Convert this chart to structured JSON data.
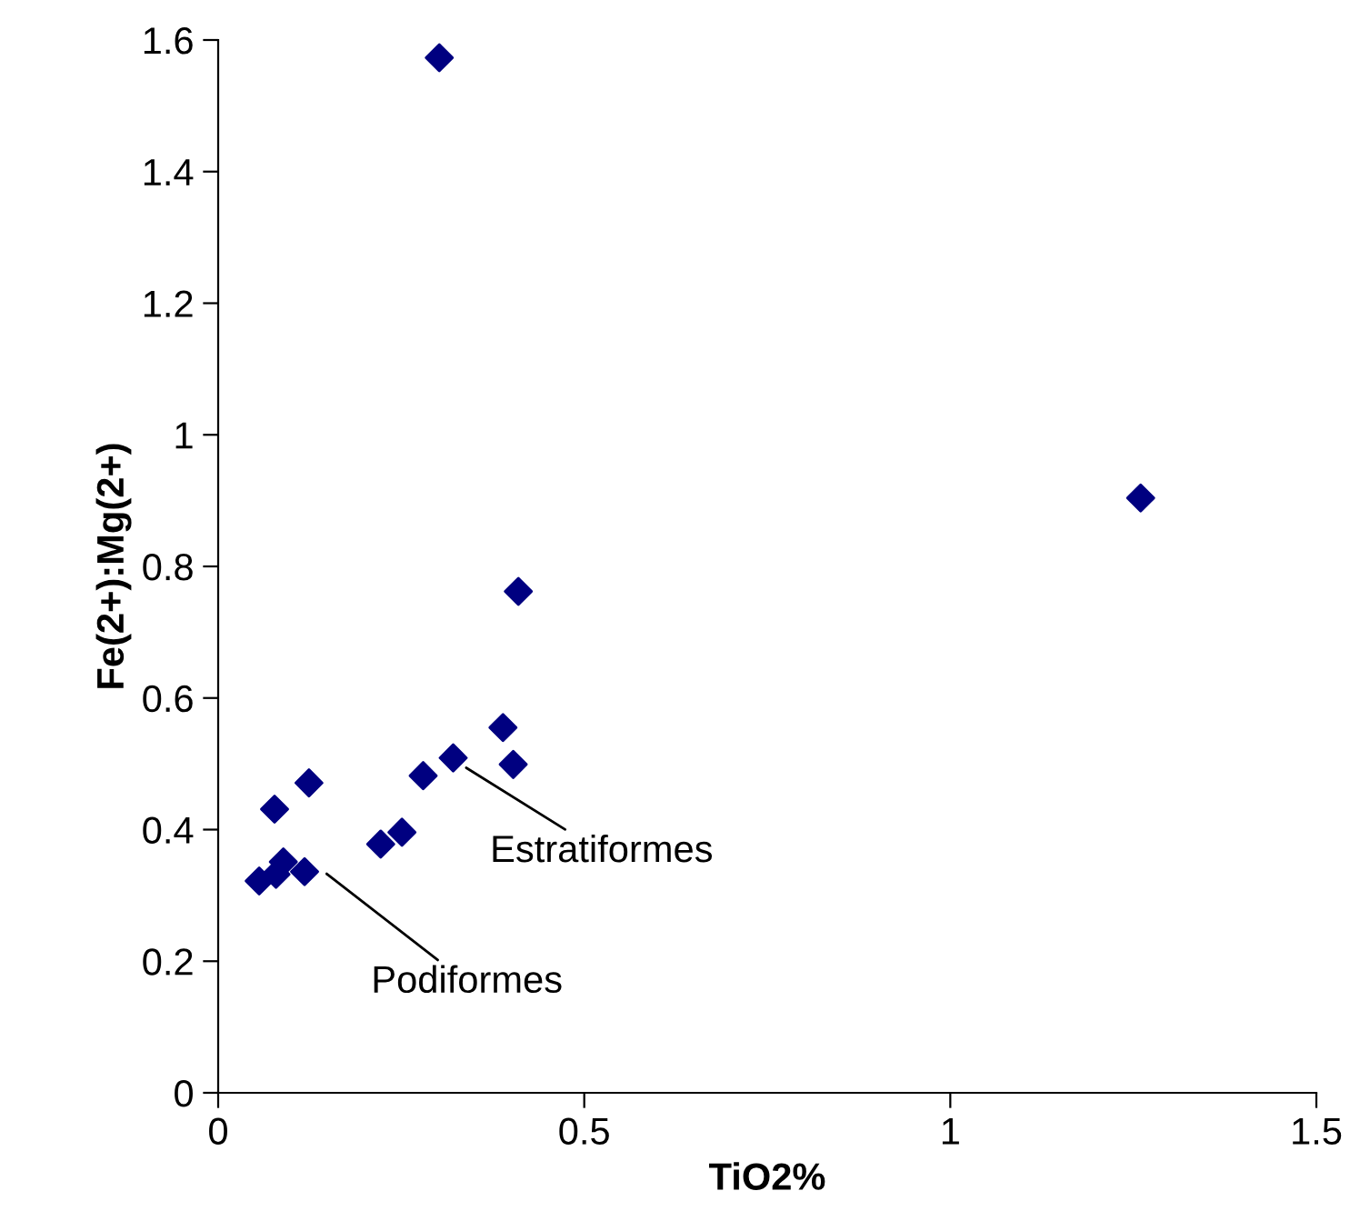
{
  "chart_data": {
    "type": "scatter",
    "xlabel": "TiO2%",
    "ylabel": "Fe(2+):Mg(2+)",
    "x": [
      0.056,
      0.079,
      0.089,
      0.118,
      0.077,
      0.124,
      0.222,
      0.251,
      0.28,
      0.321,
      0.389,
      0.403,
      0.41,
      0.302,
      1.26
    ],
    "series": [
      {
        "color": "#000080",
        "values": [
          0.322,
          0.332,
          0.351,
          0.336,
          0.431,
          0.471,
          0.378,
          0.396,
          0.482,
          0.509,
          0.555,
          0.499,
          0.762,
          1.573,
          0.904
        ]
      }
    ],
    "marker": "diamond",
    "xlim": [
      0,
      1.5
    ],
    "xticks": [
      0,
      0.5,
      1,
      1.5
    ],
    "ylim": [
      0,
      1.6
    ],
    "yticks": [
      0,
      0.2,
      0.4,
      0.6,
      0.8,
      1,
      1.2,
      1.4,
      1.6
    ],
    "grid": false,
    "annotations": [
      {
        "text": "Estratiformes",
        "x": 0.33,
        "y": 0.5
      },
      {
        "text": "Podiformes",
        "x": 0.14,
        "y": 0.34
      }
    ]
  }
}
